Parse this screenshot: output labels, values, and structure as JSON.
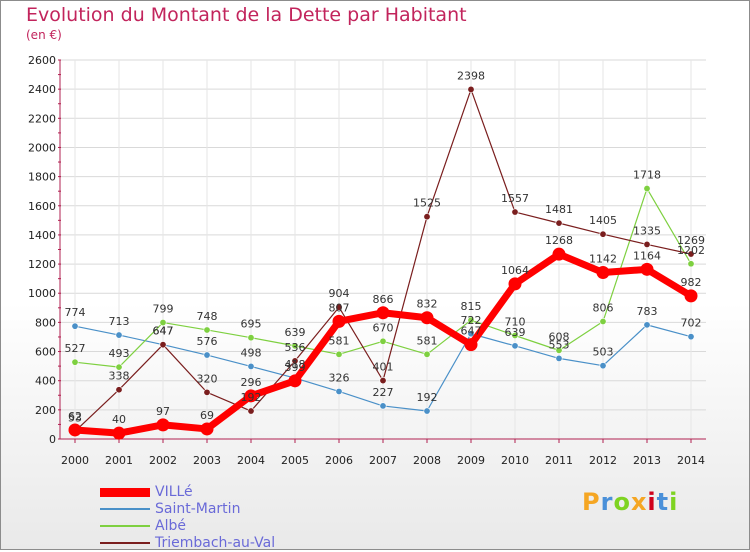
{
  "title": "Evolution du Montant de la Dette par Habitant",
  "subtitle": "(en €)",
  "logo": {
    "text": "Proxiti",
    "colors": [
      "#f5a623",
      "#4a90d9",
      "#7ed321",
      "#f5a623",
      "#d0021b",
      "#4a90d9",
      "#7ed321"
    ]
  },
  "chart_data": {
    "type": "line",
    "title": "Evolution du Montant de la Dette par Habitant",
    "ylabel": "(en €)",
    "xlabel": "",
    "x": [
      "2000",
      "2001",
      "2002",
      "2003",
      "2004",
      "2005",
      "2006",
      "2007",
      "2008",
      "2009",
      "2010",
      "2011",
      "2012",
      "2013",
      "2014"
    ],
    "ylim": [
      0,
      2600
    ],
    "yticks": [
      "0",
      "200",
      "400",
      "600",
      "800",
      "1000",
      "1200",
      "1400",
      "1600",
      "1800",
      "2000",
      "2200",
      "2400",
      "2600"
    ],
    "grid": true,
    "legend_position": "bottom-left",
    "series": [
      {
        "name": "VILLé",
        "color": "#ff0000",
        "values": [
          62,
          40,
          97,
          69,
          296,
          399,
          807,
          866,
          832,
          647,
          1064,
          1268,
          1142,
          1164,
          982
        ],
        "labels": [
          "62",
          "40",
          "97",
          "69",
          "296",
          "399",
          "807",
          "866",
          "832",
          "647",
          "1064",
          "1268",
          "1142",
          "1164",
          "982"
        ]
      },
      {
        "name": "Saint-Martin",
        "color": "#4a90c8",
        "values": [
          774,
          713,
          647,
          576,
          498,
          418,
          326,
          227,
          192,
          722,
          639,
          553,
          503,
          783,
          702
        ],
        "labels": [
          "774",
          "713",
          "647",
          "576",
          "498",
          "418",
          "326",
          "227",
          "192",
          "722",
          "639",
          "553",
          "503",
          "783",
          "702"
        ]
      },
      {
        "name": "Albé",
        "color": "#7ed040",
        "values": [
          527,
          493,
          799,
          748,
          695,
          639,
          581,
          670,
          581,
          815,
          710,
          608,
          806,
          1718,
          1202
        ],
        "labels": [
          "527",
          "493",
          "799",
          "748",
          "695",
          "639",
          "581",
          "670",
          "581",
          "815",
          "710",
          "608",
          "806",
          "1718",
          "1202"
        ]
      },
      {
        "name": "Triembach-au-Val",
        "color": "#7a1e1e",
        "values": [
          53,
          338,
          647,
          320,
          192,
          536,
          904,
          401,
          1525,
          2398,
          1557,
          1481,
          1405,
          1335,
          1269
        ],
        "labels": [
          "53",
          "338",
          "647",
          "320",
          "192",
          "536",
          "904",
          "401",
          "1525",
          "2398",
          "1557",
          "1481",
          "1405",
          "1335",
          "1269"
        ]
      }
    ]
  }
}
